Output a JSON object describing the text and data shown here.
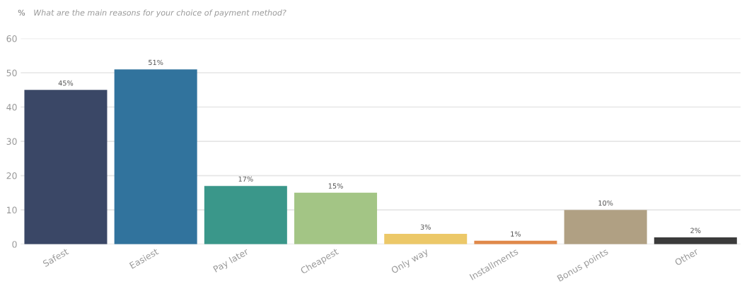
{
  "chart_data": {
    "type": "bar",
    "title": "What are the main reasons for your choice of payment method?",
    "ylabel": "%",
    "categories": [
      "Safest",
      "Easiest",
      "Pay later",
      "Cheapest",
      "Only way",
      "Installments",
      "Bonus points",
      "Other"
    ],
    "values": [
      45,
      51,
      17,
      15,
      3,
      1,
      10,
      2
    ],
    "value_labels": [
      "45%",
      "51%",
      "17%",
      "15%",
      "3%",
      "1%",
      "10%",
      "2%"
    ],
    "colors": [
      "#3a4766",
      "#31739d",
      "#3a978a",
      "#a3c585",
      "#ecc868",
      "#e0894a",
      "#b0a083",
      "#3b3b3b"
    ],
    "ylim": [
      0,
      60
    ],
    "yticks": [
      0,
      10,
      20,
      30,
      40,
      50,
      60
    ],
    "grid": "y"
  }
}
